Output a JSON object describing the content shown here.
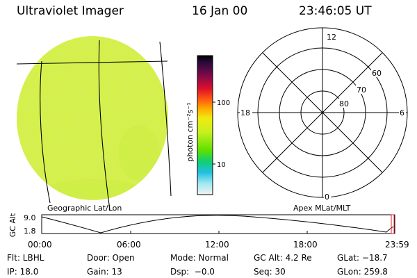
{
  "header": {
    "title": "Ultraviolet Imager",
    "date": "16 Jan 00",
    "time": "23:46:05 UT"
  },
  "colorbar": {
    "label": "photon cm⁻²s⁻¹",
    "tick_labels": [
      "100",
      "10"
    ],
    "scale": "log"
  },
  "polar": {
    "mlt_labels": {
      "top": "12",
      "left": "18",
      "right": "6",
      "bottom": "0"
    },
    "lat_labels": [
      "60",
      "70",
      "80"
    ]
  },
  "captions": {
    "left": "Geographic Lat/Lon",
    "right": "Apex MLat/MLT"
  },
  "altplot": {
    "ylabel": "GC Alt",
    "y_ticks": [
      "9.0",
      "1.8"
    ],
    "x_ticks": [
      "00:00",
      "06:00",
      "12:00",
      "18:00",
      "23:59"
    ]
  },
  "info": {
    "row1": [
      "Flt: LBHL",
      "Door: Open",
      "Mode: Normal",
      "GC Alt: 4.2 Re",
      "GLat: −18.7"
    ],
    "row2": [
      "IP: 18.0",
      "Gain: 13",
      "Dsp:  −0.0",
      "Seq: 30",
      "GLon: 259.8"
    ]
  },
  "colors": {
    "disk_fill": "#d8f046",
    "disk_speckle": "#a8e03a",
    "marker": "#e0202a"
  }
}
